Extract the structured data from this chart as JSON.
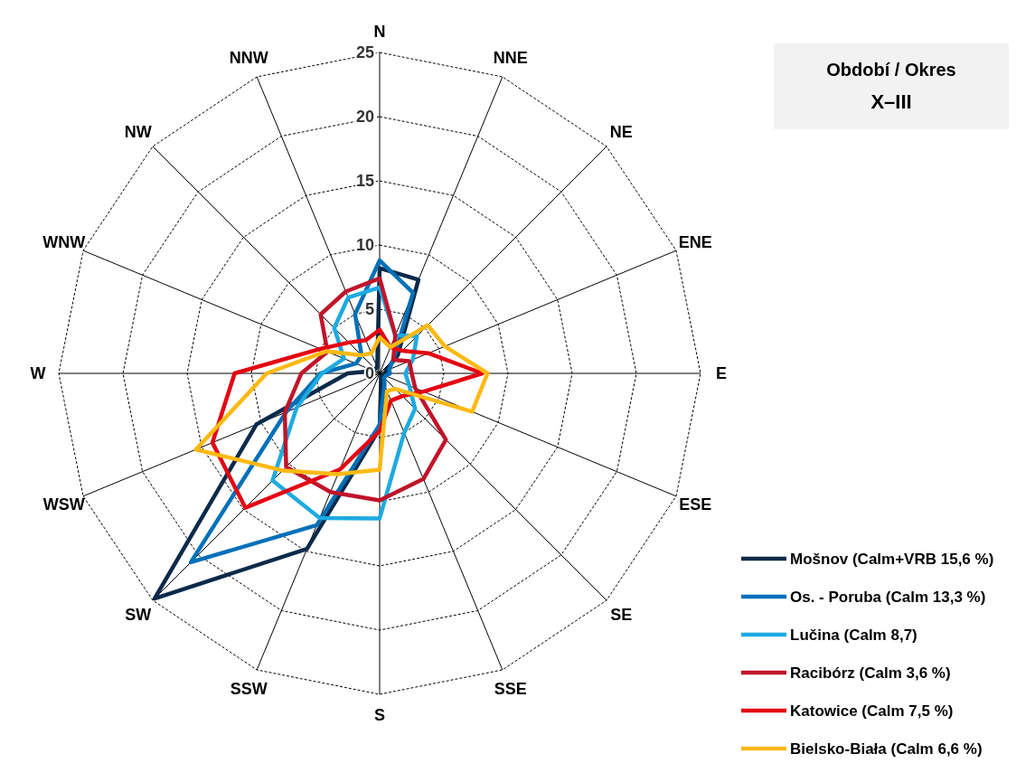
{
  "chart_data": {
    "type": "radar",
    "title": "Období / Okres",
    "subtitle": "X–III",
    "categories": [
      "N",
      "NNE",
      "NE",
      "ENE",
      "E",
      "ESE",
      "SE",
      "SSE",
      "S",
      "SSW",
      "SW",
      "WSW",
      "W",
      "WNW",
      "NW",
      "NNW"
    ],
    "ylim": [
      0,
      25
    ],
    "yticks": [
      0,
      5,
      10,
      15,
      20,
      25
    ],
    "legend": "bottom right",
    "grid": true,
    "series": [
      {
        "name": "Mošnov (Calm+VRB 15,6 %)",
        "color": "#0b2a4a",
        "values": [
          8.2,
          7.9,
          2,
          0.5,
          0.5,
          0.3,
          0.3,
          0.3,
          4.3,
          14.8,
          24.8,
          10.4,
          2.5,
          0.5,
          0.5,
          0.5
        ]
      },
      {
        "name": "Os. - Poruba (Calm 13,3 %)",
        "color": "#0070b8",
        "values": [
          8.8,
          6.8,
          1.5,
          0.8,
          0.8,
          0.5,
          0.5,
          1,
          4,
          12.8,
          20.8,
          7.9,
          4.6,
          2,
          2,
          5
        ]
      },
      {
        "name": "Lučina (Calm 8,7)",
        "color": "#1eaae1",
        "values": [
          6.7,
          3.2,
          4.1,
          2.8,
          2,
          2.5,
          3.9,
          5,
          11.3,
          12.2,
          11.8,
          7,
          4.5,
          3,
          5,
          6.4
        ]
      },
      {
        "name": "Racibórz (Calm 3,6 %)",
        "color": "#c0142a",
        "values": [
          7.4,
          3.2,
          1.5,
          2.5,
          2.5,
          3,
          7.3,
          8.9,
          9.9,
          10,
          10.3,
          8,
          6.1,
          4.4,
          6.5,
          6.9
        ]
      },
      {
        "name": "Katowice (Calm 7,5 %)",
        "color": "#e30613",
        "values": [
          3.4,
          2.2,
          2.5,
          4.1,
          8,
          3.7,
          2.5,
          2.3,
          4.5,
          8.1,
          14.8,
          14.1,
          11.3,
          5,
          3.4,
          2.8
        ]
      },
      {
        "name": "Bielsko-Biała (Calm 6,6 %)",
        "color": "#fdb913",
        "values": [
          2.8,
          2.2,
          5.3,
          5.5,
          8.4,
          7.8,
          1.7,
          1.5,
          7.5,
          8.5,
          10.7,
          15.5,
          8.8,
          4.5,
          2,
          1.7
        ]
      }
    ]
  }
}
